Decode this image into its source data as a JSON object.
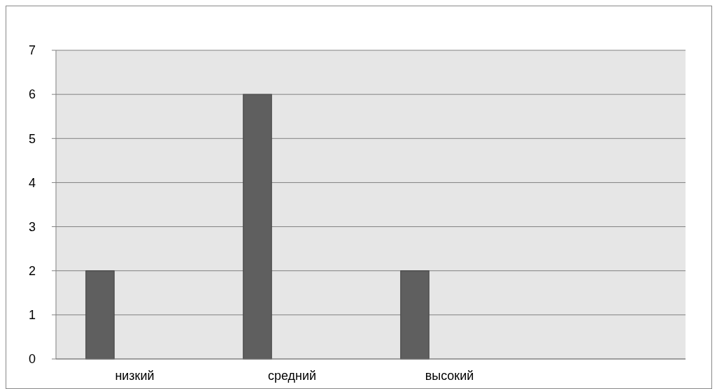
{
  "chart_data": {
    "type": "bar",
    "categories": [
      "низкий",
      "средний",
      "высокий",
      null
    ],
    "values": [
      2,
      6,
      2,
      null
    ],
    "color": "#5f5f5f",
    "ylim": [
      0,
      7
    ],
    "yticks": [
      0,
      1,
      2,
      3,
      4,
      5,
      6,
      7
    ],
    "grid": "y"
  }
}
